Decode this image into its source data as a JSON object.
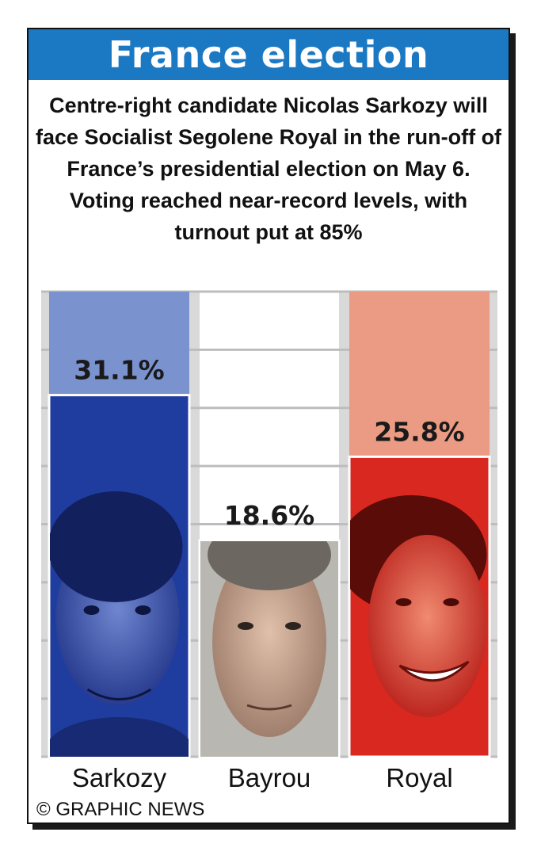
{
  "title": "France election",
  "subtitle": "Centre-right candidate Nicolas Sarkozy will face Socialist Segolene Royal in the run-off of France’s presidential election on May 6. Voting reached near-record levels, with turnout put at 85%",
  "credit": "© GRAPHIC NEWS",
  "colors": {
    "title_bar": "#1b78c2",
    "sarkozy": "#1f3d9e",
    "sarkozy_light": "#7a93cf",
    "royal": "#d9281f",
    "royal_light": "#eb9a83"
  },
  "chart_data": {
    "type": "bar",
    "categories": [
      "Sarkozy",
      "Bayrou",
      "Royal"
    ],
    "values": [
      31.1,
      18.6,
      25.8
    ],
    "value_labels": [
      "31.1%",
      "18.6%",
      "25.8%"
    ],
    "ylim": [
      0,
      40
    ],
    "grid": true,
    "portraits": [
      "sarkozy-portrait",
      "bayrou-portrait",
      "royal-portrait"
    ]
  }
}
